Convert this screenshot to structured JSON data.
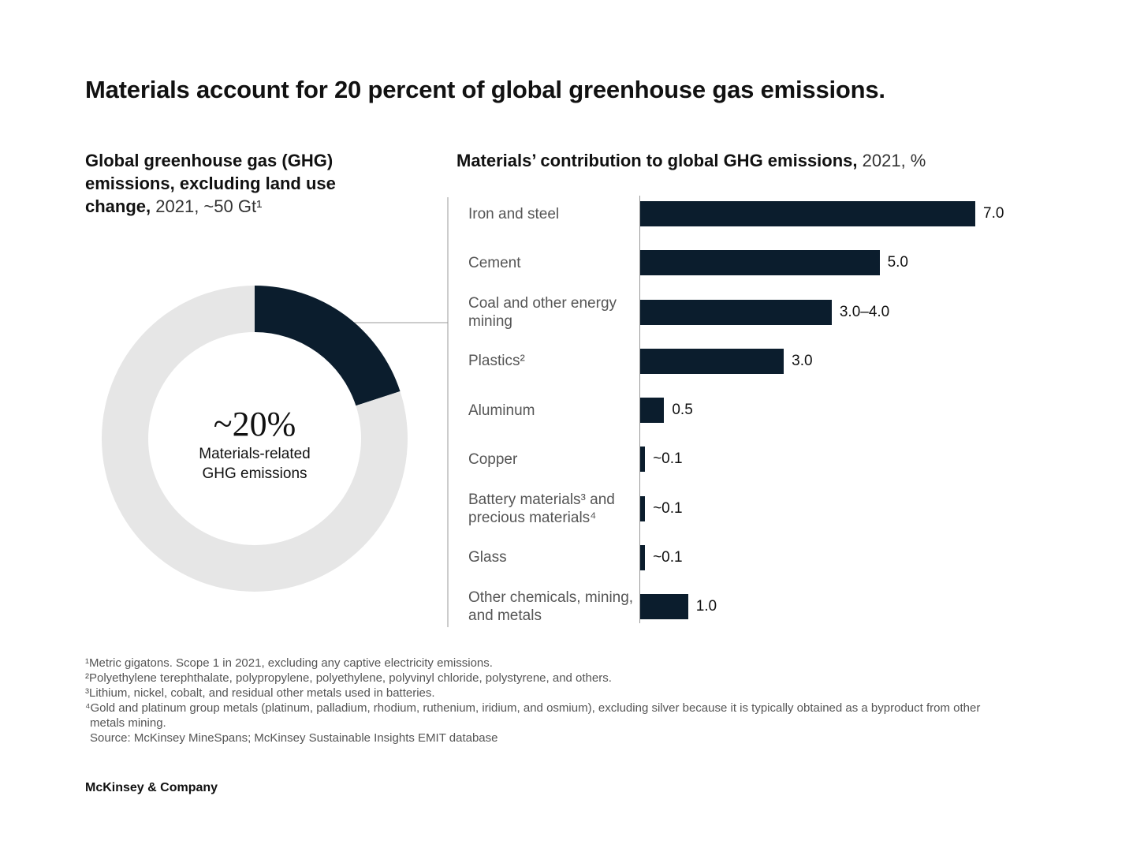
{
  "title": "Materials account for 20 percent of global greenhouse gas emissions.",
  "chart_data": [
    {
      "type": "donut",
      "title": "Global greenhouse gas (GHG) emissions, excluding land use change,",
      "title_detail": "2021, ~50 Gt¹",
      "values": [
        20,
        80
      ],
      "value_labels": [
        "~20%",
        null
      ],
      "colors": [
        "#0b1d2d",
        "#e6e6e6"
      ],
      "center_label": "Materials-related GHG emissions"
    },
    {
      "type": "hbar",
      "title": "Materials’ contribution to global GHG emissions,",
      "title_detail": "2021, %",
      "categories": [
        "Iron and steel",
        "Cement",
        "Coal and other energy mining",
        "Plastics²",
        "Aluminum",
        "Copper",
        "Battery materials³ and precious materials⁴",
        "Glass",
        "Other chemicals, mining, and metals"
      ],
      "values": [
        7.0,
        5.0,
        4.0,
        3.0,
        0.5,
        0.1,
        0.1,
        0.1,
        1.0
      ],
      "value_labels": [
        "7.0",
        "5.0",
        "3.0–4.0",
        "3.0",
        "0.5",
        "~0.1",
        "~0.1",
        "~0.1",
        "1.0"
      ],
      "color": "#0b1d2d"
    }
  ],
  "footnotes": [
    "¹Metric gigatons. Scope 1 in 2021, excluding any captive electricity emissions.",
    "²Polyethylene terephthalate, polypropylene, polyethylene, polyvinyl chloride, polystyrene, and others.",
    "³Lithium, nickel, cobalt, and residual other metals used in batteries.",
    "⁴Gold and platinum group metals (platinum, palladium, rhodium, ruthenium, iridium, and osmium), excluding silver because it is typically obtained as a byproduct from other metals mining."
  ],
  "source": "Source: McKinsey MineSpans; McKinsey Sustainable Insights EMIT database",
  "brand": "McKinsey & Company"
}
